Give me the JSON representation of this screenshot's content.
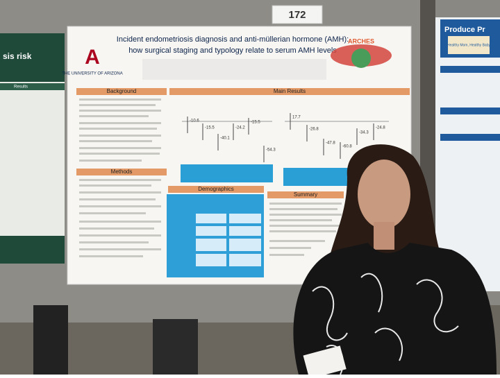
{
  "sign": "172",
  "left_poster": {
    "title": "sis risk",
    "section": "Results"
  },
  "poster": {
    "title_line1": "Incident endometriosis diagnosis and anti-müllerian hormone (AMH):",
    "title_line2": "how surgical staging and typology relate to serum AMH levels",
    "university": "THE UNIVERSITY OF ARIZONA",
    "logo_text": "ARCHES",
    "sections": [
      "Background",
      "Main Results",
      "Methods",
      "Demographics",
      "Summary"
    ],
    "figure1_values": [
      "-10.6",
      "-15.5",
      "-40.1",
      "-24.2",
      "-15.5",
      "-54.3"
    ],
    "figure2_values": [
      "17.7",
      "-26.8",
      "-47.8",
      "-60.8",
      "-34.3",
      "-24.8"
    ]
  },
  "right_poster": {
    "title": "Produce Pr",
    "subtitle": "Healthy Mom, Healthy Baby"
  }
}
